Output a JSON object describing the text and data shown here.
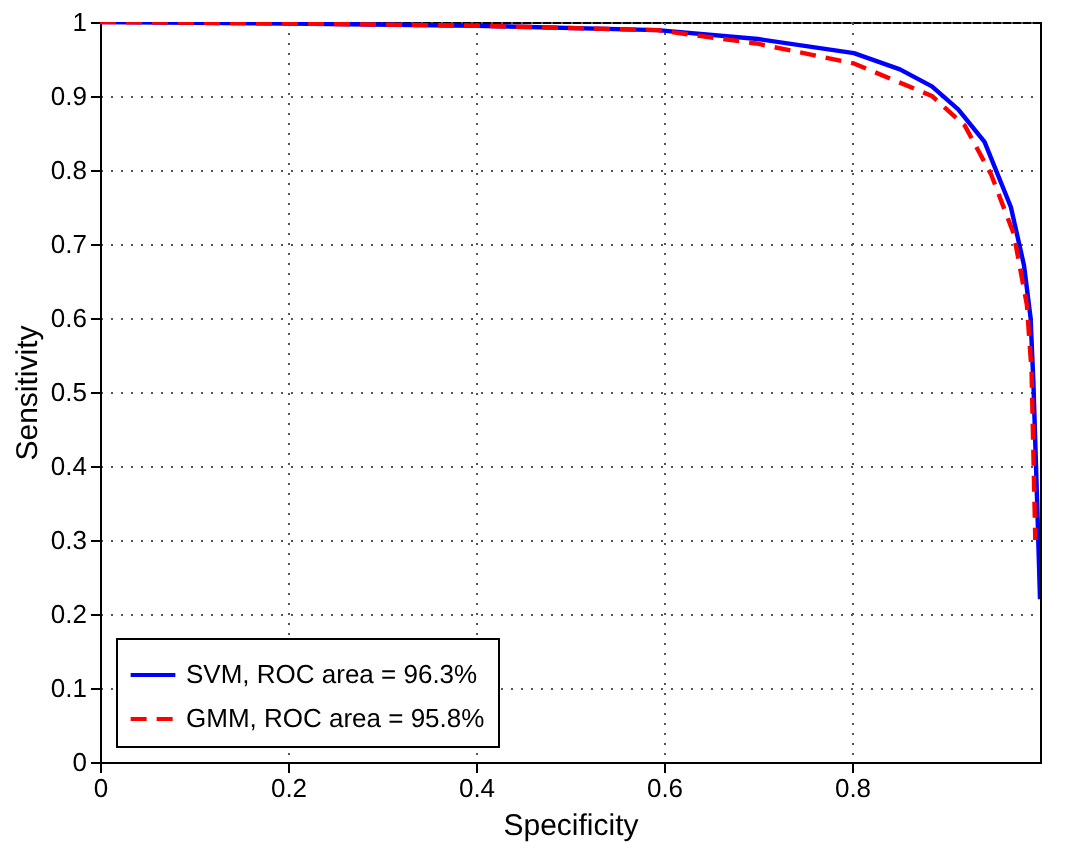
{
  "chart_data": {
    "type": "line",
    "xlabel": "Specificity",
    "ylabel": "Sensitivity",
    "xlim": [
      0,
      1
    ],
    "ylim": [
      0,
      1
    ],
    "xticks": [
      0,
      0.2,
      0.4,
      0.6,
      0.8
    ],
    "yticks": [
      0,
      0.1,
      0.2,
      0.3,
      0.4,
      0.5,
      0.6,
      0.7,
      0.8,
      0.9,
      1
    ],
    "grid": true,
    "legend": "bottom left",
    "series": [
      {
        "name": "SVM, ROC area = 96.3%",
        "color": "#0000ff",
        "line_style": "solid",
        "x": [
          0,
          0.2,
          0.4,
          0.593,
          0.7,
          0.802,
          0.851,
          0.885,
          0.913,
          0.941,
          0.969,
          0.983,
          0.99,
          0.993,
          0.997,
          1
        ],
        "values": [
          1.0,
          0.998,
          0.995,
          0.989,
          0.977,
          0.958,
          0.936,
          0.913,
          0.882,
          0.838,
          0.75,
          0.671,
          0.6,
          0.512,
          0.35,
          0.22
        ]
      },
      {
        "name": "GMM, ROC area = 95.8%",
        "color": "#ff0000",
        "line_style": "dashed",
        "x": [
          0,
          0.2,
          0.4,
          0.593,
          0.698,
          0.802,
          0.885,
          0.92,
          0.948,
          0.972,
          0.986,
          0.991,
          0.995
        ],
        "values": [
          1.0,
          0.998,
          0.995,
          0.989,
          0.971,
          0.944,
          0.9,
          0.86,
          0.794,
          0.714,
          0.618,
          0.529,
          0.3
        ]
      }
    ]
  }
}
